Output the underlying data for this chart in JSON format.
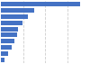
{
  "values": [
    4508,
    1900,
    1532,
    1207,
    984,
    933,
    774,
    616,
    421,
    206
  ],
  "bar_color": "#4472c4",
  "background_color": "#ffffff",
  "xlim": [
    0,
    5000
  ],
  "bar_height": 0.72,
  "grid_color": "#cccccc",
  "grid_linestyle": "--",
  "grid_linewidth": 0.6,
  "xticks": [
    1250,
    2500,
    3750
  ]
}
